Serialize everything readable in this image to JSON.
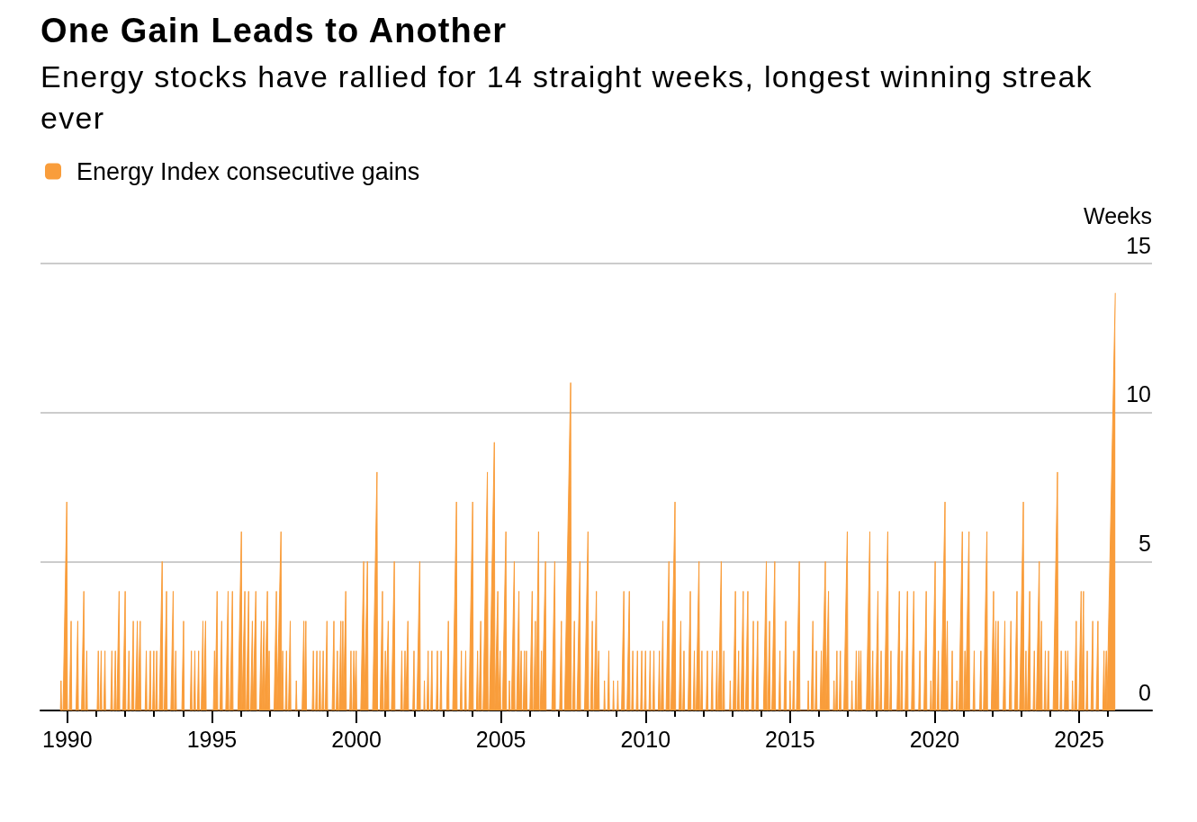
{
  "chart_data": {
    "type": "area",
    "title": "One Gain Leads to Another",
    "subtitle": "Energy stocks have rallied for 14 straight weeks, longest winning streak ever",
    "ylabel": "Weeks",
    "x": [
      1989.76,
      1989.78,
      1989.8,
      1989.85,
      1989.98,
      1990.0,
      1990.07,
      1990.13,
      1990.15,
      1990.3,
      1990.36,
      1990.38,
      1990.49,
      1990.57,
      1990.59,
      1990.63,
      1990.67,
      1990.69,
      1991.03,
      1991.07,
      1991.09,
      1991.13,
      1991.17,
      1991.19,
      1991.26,
      1991.3,
      1991.32,
      1991.5,
      1991.54,
      1991.56,
      1991.62,
      1991.66,
      1991.68,
      1991.71,
      1991.79,
      1991.81,
      1991.92,
      1992.0,
      1992.02,
      1992.09,
      1992.13,
      1992.15,
      1992.22,
      1992.28,
      1992.3,
      1992.36,
      1992.42,
      1992.44,
      1992.46,
      1992.52,
      1992.54,
      1992.69,
      1992.73,
      1992.75,
      1992.83,
      1992.87,
      1992.89,
      1992.95,
      1992.99,
      1993.01,
      1993.05,
      1993.09,
      1993.11,
      1993.18,
      1993.28,
      1993.3,
      1993.35,
      1993.43,
      1993.45,
      1993.58,
      1993.66,
      1993.68,
      1993.71,
      1993.75,
      1993.77,
      1993.96,
      1994.02,
      1994.04,
      1994.25,
      1994.29,
      1994.31,
      1994.37,
      1994.41,
      1994.43,
      1994.5,
      1994.54,
      1994.56,
      1994.63,
      1994.69,
      1994.71,
      1994.72,
      1994.78,
      1994.8,
      1995.05,
      1995.09,
      1995.11,
      1995.18,
      1995.2,
      1995.28,
      1995.34,
      1995.36,
      1995.48,
      1995.56,
      1995.58,
      1995.63,
      1995.71,
      1995.73,
      1995.9,
      1996.02,
      1996.04,
      1996.06,
      1996.14,
      1996.16,
      1996.19,
      1996.27,
      1996.29,
      1996.34,
      1996.4,
      1996.42,
      1996.44,
      1996.52,
      1996.54,
      1996.65,
      1996.71,
      1996.73,
      1996.74,
      1996.8,
      1996.82,
      1996.84,
      1996.92,
      1996.94,
      1996.98,
      1997.0,
      1997.15,
      1997.23,
      1997.25,
      1997.27,
      1997.39,
      1997.41,
      1997.45,
      1997.47,
      1997.54,
      1997.58,
      1997.6,
      1997.65,
      1997.71,
      1997.73,
      1997.9,
      1997.92,
      1997.94,
      1998.12,
      1998.18,
      1998.2,
      1998.25,
      1998.27,
      1998.47,
      1998.51,
      1998.53,
      1998.59,
      1998.63,
      1998.65,
      1998.7,
      1998.74,
      1998.76,
      1998.81,
      1998.85,
      1998.87,
      1998.92,
      1998.98,
      1999.0,
      1999.16,
      1999.22,
      1999.24,
      1999.3,
      1999.34,
      1999.36,
      1999.4,
      1999.46,
      1999.48,
      1999.53,
      1999.55,
      1999.63,
      1999.65,
      1999.77,
      1999.81,
      1999.83,
      1999.87,
      1999.91,
      1999.93,
      1999.95,
      1999.99,
      2000.01,
      2000.15,
      2000.25,
      2000.27,
      2000.28,
      2000.38,
      2000.4,
      2000.56,
      2000.71,
      2000.73,
      2000.82,
      2000.9,
      2000.92,
      2000.96,
      2001.0,
      2001.02,
      2001.04,
      2001.1,
      2001.12,
      2001.21,
      2001.31,
      2001.33,
      2001.53,
      2001.57,
      2001.59,
      2001.64,
      2001.68,
      2001.7,
      2001.72,
      2001.78,
      2001.8,
      2001.95,
      2001.99,
      2002.01,
      2002.09,
      2002.19,
      2002.21,
      2002.33,
      2002.35,
      2002.37,
      2002.44,
      2002.48,
      2002.5,
      2002.57,
      2002.61,
      2002.63,
      2002.76,
      2002.8,
      2002.82,
      2002.89,
      2002.93,
      2002.95,
      2003.12,
      2003.18,
      2003.2,
      2003.33,
      2003.46,
      2003.48,
      2003.59,
      2003.63,
      2003.65,
      2003.74,
      2003.78,
      2003.8,
      2003.89,
      2004.02,
      2004.04,
      2004.15,
      2004.19,
      2004.21,
      2004.24,
      2004.3,
      2004.32,
      2004.38,
      2004.53,
      2004.55,
      2004.6,
      2004.77,
      2004.79,
      2004.81,
      2004.89,
      2004.91,
      2004.93,
      2004.97,
      2004.99,
      2005.05,
      2005.17,
      2005.19,
      2005.27,
      2005.29,
      2005.31,
      2005.36,
      2005.46,
      2005.48,
      2005.54,
      2005.62,
      2005.64,
      2005.66,
      2005.7,
      2005.72,
      2005.77,
      2005.81,
      2005.83,
      2005.84,
      2005.88,
      2005.9,
      2006.0,
      2006.08,
      2006.1,
      2006.13,
      2006.19,
      2006.21,
      2006.3,
      2006.32,
      2006.36,
      2006.4,
      2006.42,
      2006.44,
      2006.54,
      2006.56,
      2006.76,
      2006.86,
      2006.88,
      2007.03,
      2007.09,
      2007.11,
      2007.2,
      2007.41,
      2007.43,
      2007.48,
      2007.54,
      2007.56,
      2007.63,
      2007.73,
      2007.75,
      2007.89,
      2008.01,
      2008.03,
      2008.1,
      2008.16,
      2008.18,
      2008.22,
      2008.3,
      2008.32,
      2008.34,
      2008.38,
      2008.4,
      2008.56,
      2008.58,
      2008.6,
      2008.69,
      2008.73,
      2008.75,
      2008.87,
      2008.89,
      2008.91,
      2009.02,
      2009.04,
      2009.06,
      2009.17,
      2009.25,
      2009.27,
      2009.36,
      2009.44,
      2009.46,
      2009.52,
      2009.56,
      2009.58,
      2009.68,
      2009.72,
      2009.74,
      2009.83,
      2009.87,
      2009.89,
      2009.96,
      2010.0,
      2010.02,
      2010.12,
      2010.16,
      2010.18,
      2010.25,
      2010.29,
      2010.31,
      2010.44,
      2010.48,
      2010.5,
      2010.54,
      2010.6,
      2010.62,
      2010.71,
      2010.81,
      2010.83,
      2010.88,
      2011.02,
      2011.04,
      2011.16,
      2011.22,
      2011.24,
      2011.29,
      2011.33,
      2011.35,
      2011.47,
      2011.55,
      2011.57,
      2011.65,
      2011.69,
      2011.71,
      2011.75,
      2011.85,
      2011.87,
      2011.91,
      2011.95,
      2011.97,
      2012.1,
      2012.14,
      2012.16,
      2012.27,
      2012.31,
      2012.33,
      2012.43,
      2012.47,
      2012.49,
      2012.52,
      2012.62,
      2012.64,
      2012.67,
      2012.71,
      2012.73,
      2012.91,
      2012.93,
      2012.95,
      2013.03,
      2013.11,
      2013.13,
      2013.18,
      2013.22,
      2013.24,
      2013.3,
      2013.38,
      2013.4,
      2013.46,
      2013.54,
      2013.56,
      2013.67,
      2013.73,
      2013.75,
      2013.82,
      2013.88,
      2013.9,
      2014.08,
      2014.18,
      2014.2,
      2014.23,
      2014.29,
      2014.31,
      2014.37,
      2014.47,
      2014.49,
      2014.61,
      2014.65,
      2014.67,
      2014.79,
      2014.85,
      2014.87,
      2014.98,
      2015.0,
      2015.02,
      2015.09,
      2015.13,
      2015.15,
      2015.22,
      2015.32,
      2015.34,
      2015.61,
      2015.63,
      2015.65,
      2015.73,
      2015.79,
      2015.81,
      2015.87,
      2015.91,
      2015.93,
      2016.04,
      2016.08,
      2016.1,
      2016.12,
      2016.22,
      2016.24,
      2016.25,
      2016.33,
      2016.35,
      2016.5,
      2016.52,
      2016.54,
      2016.58,
      2016.62,
      2016.64,
      2016.7,
      2016.74,
      2016.76,
      2016.86,
      2016.98,
      2017.0,
      2017.12,
      2017.14,
      2017.16,
      2017.25,
      2017.29,
      2017.31,
      2017.34,
      2017.38,
      2017.4,
      2017.41,
      2017.45,
      2017.47,
      2017.64,
      2017.76,
      2017.78,
      2017.82,
      2017.86,
      2017.88,
      2017.96,
      2018.04,
      2018.06,
      2018.11,
      2018.15,
      2018.17,
      2018.26,
      2018.38,
      2018.4,
      2018.45,
      2018.49,
      2018.51,
      2018.7,
      2018.78,
      2018.8,
      2018.83,
      2018.87,
      2018.89,
      2018.98,
      2019.06,
      2019.08,
      2019.2,
      2019.28,
      2019.3,
      2019.45,
      2019.49,
      2019.51,
      2019.63,
      2019.71,
      2019.73,
      2019.85,
      2019.87,
      2019.89,
      2019.92,
      2020.02,
      2020.04,
      2020.09,
      2020.13,
      2020.15,
      2020.22,
      2020.36,
      2020.38,
      2020.44,
      2020.46,
      2020.57,
      2020.61,
      2020.63,
      2020.75,
      2020.77,
      2020.79,
      2020.84,
      2020.96,
      2020.98,
      2021.01,
      2021.05,
      2021.07,
      2021.19,
      2021.21,
      2021.33,
      2021.37,
      2021.39,
      2021.56,
      2021.6,
      2021.62,
      2021.69,
      2021.81,
      2021.83,
      2021.96,
      2022.04,
      2022.06,
      2022.12,
      2022.14,
      2022.2,
      2022.22,
      2022.37,
      2022.43,
      2022.45,
      2022.58,
      2022.64,
      2022.66,
      2022.77,
      2022.85,
      2022.87,
      2022.94,
      2023.07,
      2023.09,
      2023.12,
      2023.16,
      2023.18,
      2023.21,
      2023.29,
      2023.31,
      2023.41,
      2023.45,
      2023.47,
      2023.52,
      2023.62,
      2023.64,
      2023.7,
      2023.72,
      2023.79,
      2023.83,
      2023.85,
      2023.9,
      2023.94,
      2023.96,
      2024.1,
      2024.25,
      2024.27,
      2024.34,
      2024.38,
      2024.4,
      2024.49,
      2024.53,
      2024.55,
      2024.57,
      2024.61,
      2024.63,
      2024.75,
      2024.77,
      2024.79,
      2024.84,
      2024.9,
      2024.92,
      2024.99,
      2025.07,
      2025.09,
      2025.15,
      2025.17,
      2025.24,
      2025.28,
      2025.3,
      2025.41,
      2025.47,
      2025.49,
      2025.59,
      2025.65,
      2025.67,
      2025.82,
      2025.86,
      2025.88,
      2025.9,
      2025.94,
      2025.96,
      2025.98,
      2026.25
    ],
    "series": [
      {
        "name": "Energy Index consecutive gains",
        "color": "#f99d3b",
        "values": [
          0,
          1,
          0,
          0,
          7,
          0,
          0,
          3,
          0,
          0,
          3,
          0,
          0,
          4,
          0,
          0,
          2,
          0,
          0,
          2,
          0,
          0,
          2,
          0,
          0,
          2,
          0,
          0,
          2,
          0,
          0,
          2,
          0,
          0,
          4,
          0,
          0,
          4,
          0,
          0,
          2,
          0,
          0,
          3,
          0,
          0,
          3,
          0,
          0,
          3,
          0,
          0,
          2,
          0,
          0,
          2,
          0,
          0,
          2,
          0,
          0,
          2,
          0,
          0,
          5,
          0,
          0,
          4,
          0,
          0,
          4,
          0,
          0,
          2,
          0,
          0,
          3,
          0,
          0,
          2,
          0,
          0,
          2,
          0,
          0,
          2,
          0,
          0,
          3,
          0,
          0,
          3,
          0,
          0,
          2,
          0,
          4,
          0,
          0,
          3,
          0,
          0,
          4,
          0,
          0,
          4,
          0,
          0,
          6,
          0,
          0,
          4,
          0,
          0,
          4,
          0,
          0,
          3,
          0,
          0,
          4,
          0,
          0,
          3,
          0,
          0,
          3,
          0,
          0,
          4,
          0,
          2,
          0,
          0,
          4,
          0,
          0,
          6,
          0,
          2,
          0,
          0,
          2,
          0,
          0,
          3,
          0,
          0,
          1,
          0,
          0,
          3,
          0,
          3,
          0,
          0,
          2,
          0,
          0,
          2,
          0,
          0,
          2,
          0,
          0,
          2,
          0,
          0,
          3,
          0,
          0,
          3,
          0,
          0,
          2,
          0,
          0,
          3,
          0,
          3,
          0,
          4,
          0,
          0,
          2,
          0,
          0,
          2,
          0,
          0,
          2,
          0,
          0,
          5,
          0,
          0,
          5,
          0,
          0,
          8,
          0,
          0,
          4,
          0,
          0,
          2,
          0,
          0,
          3,
          0,
          0,
          5,
          0,
          0,
          2,
          0,
          0,
          2,
          0,
          0,
          3,
          0,
          0,
          2,
          0,
          0,
          5,
          0,
          0,
          1,
          0,
          0,
          2,
          0,
          0,
          2,
          0,
          0,
          2,
          0,
          0,
          2,
          0,
          0,
          3,
          0,
          0,
          7,
          0,
          0,
          2,
          0,
          0,
          2,
          0,
          0,
          7,
          0,
          0,
          2,
          0,
          0,
          3,
          0,
          0,
          8,
          0,
          0,
          9,
          0,
          0,
          4,
          0,
          0,
          2,
          0,
          0,
          6,
          0,
          0,
          1,
          0,
          0,
          5,
          0,
          0,
          4,
          0,
          0,
          2,
          0,
          0,
          2,
          0,
          0,
          2,
          0,
          0,
          4,
          0,
          0,
          3,
          0,
          6,
          0,
          0,
          2,
          0,
          0,
          5,
          0,
          0,
          5,
          0,
          0,
          3,
          0,
          0,
          11,
          0,
          0,
          3,
          0,
          0,
          5,
          0,
          0,
          6,
          0,
          0,
          3,
          0,
          0,
          4,
          0,
          0,
          2,
          0,
          0,
          1,
          0,
          0,
          2,
          0,
          0,
          1,
          0,
          0,
          1,
          0,
          0,
          4,
          0,
          0,
          4,
          0,
          0,
          2,
          0,
          0,
          2,
          0,
          0,
          2,
          0,
          0,
          2,
          0,
          0,
          2,
          0,
          0,
          2,
          0,
          0,
          2,
          0,
          0,
          3,
          0,
          0,
          5,
          0,
          0,
          7,
          0,
          0,
          3,
          0,
          0,
          2,
          0,
          0,
          4,
          0,
          0,
          2,
          0,
          0,
          5,
          0,
          0,
          2,
          0,
          0,
          2,
          0,
          0,
          2,
          0,
          0,
          2,
          0,
          0,
          5,
          0,
          0,
          2,
          0,
          0,
          1,
          0,
          0,
          4,
          0,
          0,
          2,
          0,
          0,
          4,
          0,
          0,
          4,
          0,
          0,
          3,
          0,
          0,
          3,
          0,
          0,
          5,
          0,
          0,
          3,
          0,
          0,
          5,
          0,
          0,
          2,
          0,
          0,
          3,
          0,
          0,
          1,
          0,
          0,
          2,
          0,
          0,
          5,
          0,
          0,
          1,
          0,
          0,
          3,
          0,
          0,
          2,
          0,
          0,
          2,
          0,
          0,
          5,
          0,
          0,
          4,
          0,
          0,
          1,
          0,
          0,
          2,
          0,
          0,
          2,
          0,
          0,
          6,
          0,
          0,
          1,
          0,
          0,
          2,
          0,
          0,
          2,
          0,
          0,
          2,
          0,
          0,
          6,
          0,
          0,
          2,
          0,
          0,
          4,
          0,
          0,
          2,
          0,
          0,
          6,
          0,
          0,
          2,
          0,
          0,
          4,
          0,
          0,
          2,
          0,
          0,
          4,
          0,
          0,
          4,
          0,
          0,
          2,
          0,
          0,
          4,
          0,
          0,
          1,
          0,
          0,
          5,
          0,
          0,
          2,
          0,
          0,
          7,
          0,
          3,
          0,
          0,
          2,
          0,
          0,
          1,
          0,
          0,
          6,
          0,
          0,
          2,
          0,
          6,
          0,
          0,
          2,
          0,
          0,
          2,
          0,
          0,
          6,
          0,
          0,
          4,
          0,
          3,
          0,
          3,
          0,
          0,
          3,
          0,
          0,
          3,
          0,
          0,
          4,
          0,
          0,
          7,
          0,
          0,
          2,
          0,
          0,
          4,
          0,
          0,
          2,
          0,
          0,
          5,
          0,
          3,
          0,
          0,
          2,
          0,
          0,
          2,
          0,
          0,
          8,
          0,
          0,
          2,
          0,
          0,
          2,
          0,
          0,
          2,
          0,
          0,
          1,
          0,
          0,
          3,
          0,
          0,
          4,
          0,
          4,
          0,
          0,
          2,
          0,
          0,
          3,
          0,
          0,
          3,
          0,
          0,
          2,
          0,
          0,
          2,
          0,
          0,
          14
        ]
      }
    ],
    "xlim": [
      1989.07,
      2027.52
    ],
    "ylim": [
      0,
      15
    ],
    "xticks": [
      1990,
      {
        "value": 1991,
        "label": null
      },
      {
        "value": 1992,
        "label": null
      },
      {
        "value": 1993,
        "label": null
      },
      {
        "value": 1994,
        "label": null
      },
      1995,
      {
        "value": 1996,
        "label": null
      },
      {
        "value": 1997,
        "label": null
      },
      {
        "value": 1998,
        "label": null
      },
      {
        "value": 1999,
        "label": null
      },
      2000,
      {
        "value": 2001,
        "label": null
      },
      {
        "value": 2002,
        "label": null
      },
      {
        "value": 2003,
        "label": null
      },
      {
        "value": 2004,
        "label": null
      },
      2005,
      {
        "value": 2006,
        "label": null
      },
      {
        "value": 2007,
        "label": null
      },
      {
        "value": 2008,
        "label": null
      },
      {
        "value": 2009,
        "label": null
      },
      2010,
      {
        "value": 2011,
        "label": null
      },
      {
        "value": 2012,
        "label": null
      },
      {
        "value": 2013,
        "label": null
      },
      {
        "value": 2014,
        "label": null
      },
      2015,
      {
        "value": 2016,
        "label": null
      },
      {
        "value": 2017,
        "label": null
      },
      {
        "value": 2018,
        "label": null
      },
      {
        "value": 2019,
        "label": null
      },
      2020,
      {
        "value": 2021,
        "label": null
      },
      {
        "value": 2022,
        "label": null
      },
      {
        "value": 2023,
        "label": null
      },
      {
        "value": 2024,
        "label": null
      },
      2025,
      {
        "value": 2026,
        "label": null
      }
    ],
    "yticks": [
      0,
      5,
      10,
      15
    ],
    "grid": "y",
    "legend": "top left"
  }
}
